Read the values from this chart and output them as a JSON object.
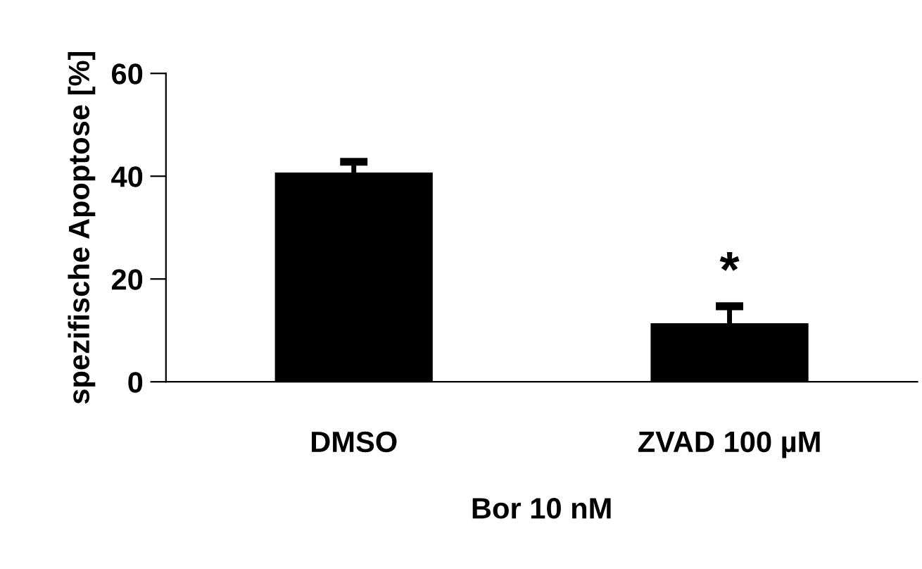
{
  "chart_data": {
    "type": "bar",
    "ylabel": "spezifische Apoptose [%]",
    "xlabel": "Bor 10 nM",
    "categories": [
      "DMSO",
      "ZVAD 100 µM"
    ],
    "values": [
      40.7,
      11.4
    ],
    "errors": [
      2.1,
      3.3
    ],
    "color": "#000000",
    "ylim": [
      0,
      60
    ],
    "yticks": [
      0,
      20,
      40,
      60
    ],
    "annotations": [
      "*"
    ],
    "grid": false,
    "legend": false
  }
}
